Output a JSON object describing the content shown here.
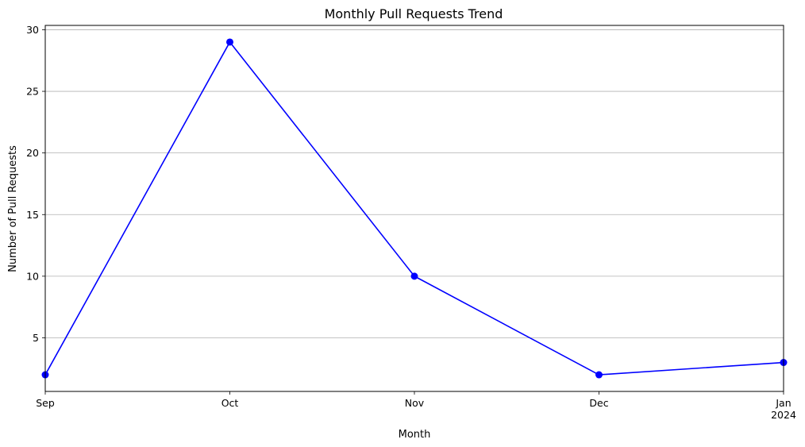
{
  "chart_data": {
    "type": "line",
    "title": "Monthly Pull Requests Trend",
    "xlabel": "Month",
    "ylabel": "Number of Pull Requests",
    "x": [
      "2023-09",
      "2023-10",
      "2023-11",
      "2023-12",
      "2024-01"
    ],
    "x_tick_labels": [
      "Sep",
      "Oct",
      "Nov",
      "Dec",
      "Jan"
    ],
    "x_tick_sublabels": [
      "",
      "",
      "",
      "",
      "2024"
    ],
    "series": [
      {
        "values": [
          2,
          29,
          10,
          2,
          3
        ],
        "color": "#0000ff",
        "marker": "circle"
      }
    ],
    "ylim": [
      0.65,
      30.35
    ],
    "yticks": [
      5,
      10,
      15,
      20,
      25,
      30
    ],
    "grid": "y-axis major",
    "legend": "none"
  }
}
